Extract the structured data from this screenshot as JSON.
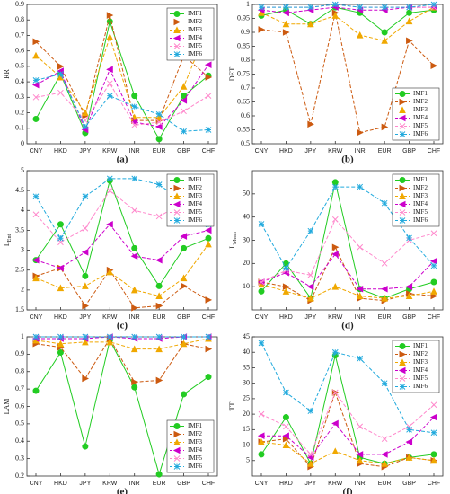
{
  "chart_data": [
    {
      "type": "line",
      "label": "(a)",
      "ylabel": {
        "base": "RR"
      },
      "categories": [
        "CNY",
        "HKD",
        "JPY",
        "KRW",
        "INR",
        "EUR",
        "GBP",
        "CHF"
      ],
      "ylim": [
        0,
        0.9
      ],
      "yticks": [
        0,
        0.1,
        0.2,
        0.3,
        0.4,
        0.5,
        0.6,
        0.7,
        0.8,
        0.9
      ],
      "legend": "top-right",
      "series": [
        {
          "name": "IMF1",
          "color": "#22cc22",
          "marker": "circle",
          "dashed": false,
          "values": [
            0.16,
            0.45,
            0.07,
            0.79,
            0.31,
            0.03,
            0.31,
            0.44
          ]
        },
        {
          "name": "IMF2",
          "color": "#cc5a10",
          "marker": "right",
          "dashed": true,
          "values": [
            0.66,
            0.5,
            0.18,
            0.83,
            0.15,
            0.15,
            0.57,
            0.43
          ]
        },
        {
          "name": "IMF3",
          "color": "#f0a800",
          "marker": "up",
          "dashed": true,
          "values": [
            0.57,
            0.43,
            0.2,
            0.69,
            0.17,
            0.17,
            0.37,
            0.76
          ]
        },
        {
          "name": "IMF4",
          "color": "#cc00cc",
          "marker": "left",
          "dashed": true,
          "values": [
            0.38,
            0.47,
            0.09,
            0.48,
            0.14,
            0.11,
            0.28,
            0.51
          ]
        },
        {
          "name": "IMF5",
          "color": "#ff88cc",
          "marker": "cross",
          "dashed": true,
          "values": [
            0.3,
            0.33,
            0.15,
            0.39,
            0.12,
            0.14,
            0.21,
            0.31
          ]
        },
        {
          "name": "IMF6",
          "color": "#22aadd",
          "marker": "star",
          "dashed": true,
          "values": [
            0.41,
            0.45,
            0.11,
            0.31,
            0.24,
            0.19,
            0.08,
            0.09
          ]
        }
      ]
    },
    {
      "type": "line",
      "label": "(b)",
      "ylabel": {
        "base": "DET"
      },
      "categories": [
        "CNY",
        "HKD",
        "JPY",
        "KRW",
        "INR",
        "EUR",
        "GBP",
        "CHF"
      ],
      "ylim": [
        0.5,
        1
      ],
      "yticks": [
        0.5,
        0.55,
        0.6,
        0.65,
        0.7,
        0.75,
        0.8,
        0.85,
        0.9,
        0.95,
        1
      ],
      "legend": "bottom-right",
      "series": [
        {
          "name": "IMF1",
          "color": "#22cc22",
          "marker": "circle",
          "dashed": false,
          "values": [
            0.96,
            0.98,
            0.93,
            0.99,
            0.97,
            0.9,
            0.97,
            0.98
          ]
        },
        {
          "name": "IMF2",
          "color": "#cc5a10",
          "marker": "right",
          "dashed": true,
          "values": [
            0.91,
            0.9,
            0.57,
            0.97,
            0.54,
            0.56,
            0.87,
            0.78
          ]
        },
        {
          "name": "IMF3",
          "color": "#f0a800",
          "marker": "up",
          "dashed": true,
          "values": [
            0.97,
            0.93,
            0.93,
            0.96,
            0.89,
            0.87,
            0.94,
            0.99
          ]
        },
        {
          "name": "IMF4",
          "color": "#cc00cc",
          "marker": "left",
          "dashed": true,
          "values": [
            0.98,
            0.97,
            0.98,
            0.99,
            0.98,
            0.98,
            0.99,
            0.99
          ]
        },
        {
          "name": "IMF5",
          "color": "#ff88cc",
          "marker": "cross",
          "dashed": true,
          "values": [
            0.99,
            0.99,
            0.99,
            1,
            0.99,
            0.99,
            0.99,
            0.99
          ]
        },
        {
          "name": "IMF6",
          "color": "#22aadd",
          "marker": "star",
          "dashed": true,
          "values": [
            0.99,
            0.99,
            0.99,
            1,
            0.99,
            0.99,
            0.99,
            1
          ]
        }
      ]
    },
    {
      "type": "line",
      "label": "(c)",
      "ylabel": {
        "base": "L",
        "sub": "Ent"
      },
      "categories": [
        "CNY",
        "HKD",
        "JPY",
        "KRW",
        "INR",
        "EUR",
        "GBP",
        "CHF"
      ],
      "ylim": [
        1.5,
        5
      ],
      "yticks": [
        1.5,
        2,
        2.5,
        3,
        3.5,
        4,
        4.5,
        5
      ],
      "legend": "top-right",
      "series": [
        {
          "name": "IMF1",
          "color": "#22cc22",
          "marker": "circle",
          "dashed": false,
          "values": [
            2.75,
            3.65,
            2.35,
            4.75,
            3.05,
            2.1,
            3.05,
            3.3
          ]
        },
        {
          "name": "IMF2",
          "color": "#cc5a10",
          "marker": "right",
          "dashed": true,
          "values": [
            2.35,
            2.55,
            1.6,
            2.5,
            1.55,
            1.6,
            2.1,
            1.75
          ]
        },
        {
          "name": "IMF3",
          "color": "#f0a800",
          "marker": "up",
          "dashed": true,
          "values": [
            2.3,
            2.05,
            2.1,
            2.45,
            2,
            1.85,
            2.3,
            3.15
          ]
        },
        {
          "name": "IMF4",
          "color": "#cc00cc",
          "marker": "left",
          "dashed": true,
          "values": [
            2.75,
            2.55,
            2.95,
            3.65,
            2.85,
            2.75,
            3.35,
            3.5
          ]
        },
        {
          "name": "IMF5",
          "color": "#ff88cc",
          "marker": "cross",
          "dashed": true,
          "values": [
            3.9,
            3.2,
            3.55,
            4.5,
            4,
            3.85,
            4.2,
            4.25
          ]
        },
        {
          "name": "IMF6",
          "color": "#22aadd",
          "marker": "star",
          "dashed": true,
          "values": [
            4.35,
            3.3,
            4.35,
            4.8,
            4.8,
            4.65,
            4.2,
            3.65
          ]
        }
      ]
    },
    {
      "type": "line",
      "label": "(d)",
      "ylabel": {
        "base": "L",
        "sub": "Mean"
      },
      "categories": [
        "CNY",
        "HKD",
        "JPY",
        "KRW",
        "INR",
        "EUR",
        "GBP",
        "CHF"
      ],
      "ylim": [
        0,
        60
      ],
      "yticks": [
        10,
        20,
        30,
        40,
        50
      ],
      "legend": "top-right",
      "series": [
        {
          "name": "IMF1",
          "color": "#22cc22",
          "marker": "circle",
          "dashed": false,
          "values": [
            8,
            20,
            5,
            55,
            9,
            5,
            9,
            12
          ]
        },
        {
          "name": "IMF2",
          "color": "#cc5a10",
          "marker": "right",
          "dashed": true,
          "values": [
            12,
            10,
            4,
            27,
            5,
            4,
            7,
            6
          ]
        },
        {
          "name": "IMF3",
          "color": "#f0a800",
          "marker": "up",
          "dashed": true,
          "values": [
            11,
            8,
            5,
            10,
            6,
            5,
            6,
            8
          ]
        },
        {
          "name": "IMF4",
          "color": "#cc00cc",
          "marker": "left",
          "dashed": true,
          "values": [
            12,
            16,
            10,
            24,
            9,
            9,
            10,
            21
          ]
        },
        {
          "name": "IMF5",
          "color": "#ff88cc",
          "marker": "cross",
          "dashed": true,
          "values": [
            12,
            17,
            15,
            39,
            27,
            20,
            30,
            33
          ]
        },
        {
          "name": "IMF6",
          "color": "#22aadd",
          "marker": "star",
          "dashed": true,
          "values": [
            37,
            18,
            34,
            53,
            53,
            46,
            31,
            19
          ]
        }
      ]
    },
    {
      "type": "line",
      "label": "(e)",
      "ylabel": {
        "base": "LAM"
      },
      "categories": [
        "CNY",
        "HKD",
        "JPY",
        "KRW",
        "INR",
        "EUR",
        "GBP",
        "CHF"
      ],
      "ylim": [
        0.2,
        1
      ],
      "yticks": [
        0.2,
        0.3,
        0.4,
        0.5,
        0.6,
        0.7,
        0.8,
        0.9,
        1
      ],
      "legend": "bottom-right",
      "series": [
        {
          "name": "IMF1",
          "color": "#22cc22",
          "marker": "circle",
          "dashed": false,
          "values": [
            0.69,
            0.91,
            0.37,
            0.98,
            0.71,
            0.21,
            0.67,
            0.77
          ]
        },
        {
          "name": "IMF2",
          "color": "#cc5a10",
          "marker": "right",
          "dashed": true,
          "values": [
            0.96,
            0.94,
            0.76,
            0.99,
            0.74,
            0.75,
            0.96,
            0.93
          ]
        },
        {
          "name": "IMF3",
          "color": "#f0a800",
          "marker": "up",
          "dashed": true,
          "values": [
            0.98,
            0.96,
            0.97,
            0.97,
            0.93,
            0.93,
            0.96,
            0.99
          ]
        },
        {
          "name": "IMF4",
          "color": "#cc00cc",
          "marker": "left",
          "dashed": true,
          "values": [
            0.99,
            0.99,
            0.99,
            1,
            0.99,
            0.99,
            1,
            1
          ]
        },
        {
          "name": "IMF5",
          "color": "#ff88cc",
          "marker": "cross",
          "dashed": true,
          "values": [
            1,
            1,
            1,
            1,
            1,
            1,
            1,
            1
          ]
        },
        {
          "name": "IMF6",
          "color": "#22aadd",
          "marker": "star",
          "dashed": true,
          "values": [
            1,
            1,
            1,
            1,
            1,
            1,
            1,
            1
          ]
        }
      ]
    },
    {
      "type": "line",
      "label": "(f)",
      "ylabel": {
        "base": "TT"
      },
      "categories": [
        "CNY",
        "HKD",
        "JPY",
        "KRW",
        "INR",
        "EUR",
        "GBP",
        "CHF"
      ],
      "ylim": [
        0,
        45
      ],
      "yticks": [
        5,
        10,
        15,
        20,
        25,
        30,
        35,
        40,
        45
      ],
      "legend": "top-right",
      "series": [
        {
          "name": "IMF1",
          "color": "#22cc22",
          "marker": "circle",
          "dashed": false,
          "values": [
            7,
            19,
            4,
            39,
            6,
            4,
            6,
            7
          ]
        },
        {
          "name": "IMF2",
          "color": "#cc5a10",
          "marker": "right",
          "dashed": true,
          "values": [
            11,
            12,
            3,
            27,
            4,
            3,
            6,
            5
          ]
        },
        {
          "name": "IMF3",
          "color": "#f0a800",
          "marker": "up",
          "dashed": true,
          "values": [
            11,
            10,
            4,
            8,
            5,
            4,
            6,
            5
          ]
        },
        {
          "name": "IMF4",
          "color": "#cc00cc",
          "marker": "left",
          "dashed": true,
          "values": [
            13,
            13,
            6,
            17,
            7,
            7,
            11,
            19
          ]
        },
        {
          "name": "IMF5",
          "color": "#ff88cc",
          "marker": "cross",
          "dashed": true,
          "values": [
            20,
            16,
            7,
            27,
            16,
            12,
            16,
            23
          ]
        },
        {
          "name": "IMF6",
          "color": "#22aadd",
          "marker": "star",
          "dashed": true,
          "values": [
            43,
            27,
            21,
            40,
            38,
            30,
            15,
            14
          ]
        }
      ]
    }
  ]
}
